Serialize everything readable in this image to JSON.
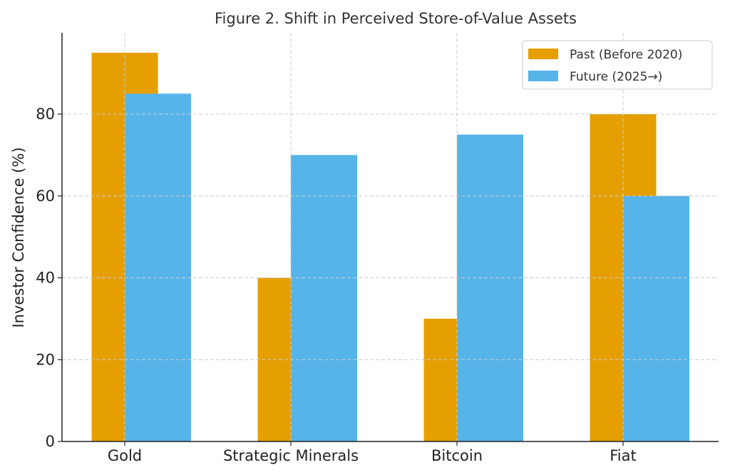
{
  "chart_data": {
    "type": "bar",
    "title": "Figure 2. Shift in Perceived Store-of-Value Assets",
    "xlabel": "",
    "ylabel": "Investor Confidence (%)",
    "categories": [
      "Gold",
      "Strategic Minerals",
      "Bitcoin",
      "Fiat"
    ],
    "series": [
      {
        "name": "Past (Before 2020)",
        "color": "#E69F00",
        "values": [
          95,
          40,
          30,
          80
        ]
      },
      {
        "name": "Future (2025→)",
        "color": "#56B4E9",
        "values": [
          85,
          70,
          75,
          60
        ]
      }
    ],
    "ylim": [
      0,
      100
    ],
    "yticks": [
      0,
      20,
      40,
      60,
      80
    ],
    "grid": true,
    "legend_position": "top-right"
  }
}
